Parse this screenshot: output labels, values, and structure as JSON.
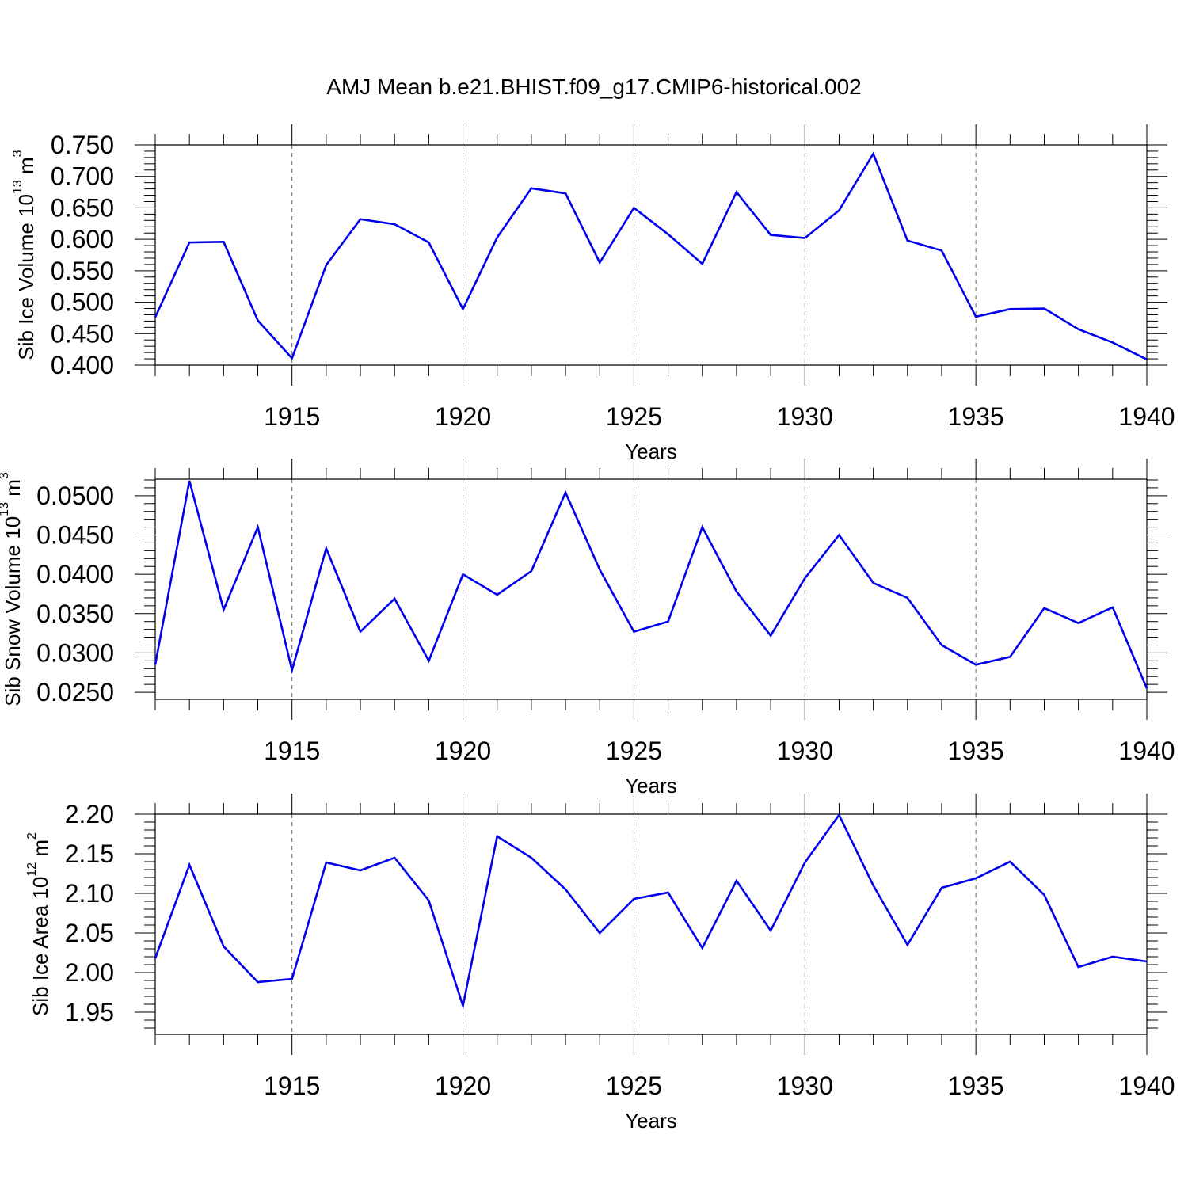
{
  "title": "AMJ Mean b.e21.BHIST.f09_g17.CMIP6-historical.002",
  "chart_data": [
    {
      "type": "line",
      "ylabel": {
        "prefix": "Sib Ice Volume 10",
        "exp": "13",
        "unit": " m",
        "unit_exp": "3"
      },
      "xlabel": "Years",
      "xlim": [
        1911,
        1940
      ],
      "ylim": [
        0.4,
        0.75
      ],
      "xticks": [
        "1915",
        "1920",
        "1925",
        "1930",
        "1935",
        "1940"
      ],
      "yticks": [
        "0.400",
        "0.450",
        "0.500",
        "0.550",
        "0.600",
        "0.650",
        "0.700",
        "0.750"
      ],
      "color": "#0000ee",
      "grid": "dashed vertical at labeled years",
      "x": [
        1911,
        1912,
        1913,
        1914,
        1915,
        1916,
        1917,
        1918,
        1919,
        1920,
        1921,
        1922,
        1923,
        1924,
        1925,
        1926,
        1927,
        1928,
        1929,
        1930,
        1931,
        1932,
        1933,
        1934,
        1935,
        1936,
        1937,
        1938,
        1939,
        1940
      ],
      "values": [
        0.476,
        0.595,
        0.596,
        0.471,
        0.411,
        0.559,
        0.632,
        0.624,
        0.595,
        0.489,
        0.603,
        0.681,
        0.673,
        0.563,
        0.65,
        0.608,
        0.561,
        0.675,
        0.607,
        0.602,
        0.646,
        0.736,
        0.598,
        0.582,
        0.477,
        0.489,
        0.49,
        0.457,
        0.436,
        0.409
      ]
    },
    {
      "type": "line",
      "ylabel": {
        "prefix": "Sib Snow Volume 10",
        "exp": "13",
        "unit": " m",
        "unit_exp": "3"
      },
      "xlabel": "Years",
      "xlim": [
        1911,
        1940
      ],
      "ylim": [
        0.0241,
        0.0521
      ],
      "xticks": [
        "1915",
        "1920",
        "1925",
        "1930",
        "1935",
        "1940"
      ],
      "yticks": [
        "0.0250",
        "0.0300",
        "0.0350",
        "0.0400",
        "0.0450",
        "0.0500"
      ],
      "color": "#0000ee",
      "grid": "dashed vertical at labeled years",
      "x": [
        1911,
        1912,
        1913,
        1914,
        1915,
        1916,
        1917,
        1918,
        1919,
        1920,
        1921,
        1922,
        1923,
        1924,
        1925,
        1926,
        1927,
        1928,
        1929,
        1930,
        1931,
        1932,
        1933,
        1934,
        1935,
        1936,
        1937,
        1938,
        1939,
        1940
      ],
      "values": [
        0.0285,
        0.0519,
        0.0355,
        0.046,
        0.0278,
        0.0433,
        0.0327,
        0.0369,
        0.029,
        0.04,
        0.0374,
        0.0404,
        0.0504,
        0.0406,
        0.0327,
        0.034,
        0.046,
        0.0378,
        0.0322,
        0.0395,
        0.045,
        0.0389,
        0.037,
        0.031,
        0.0285,
        0.0295,
        0.0357,
        0.0338,
        0.0358,
        0.0255
      ]
    },
    {
      "type": "line",
      "ylabel": {
        "prefix": "Sib Ice Area 10",
        "exp": "12",
        "unit": " m",
        "unit_exp": "2"
      },
      "xlabel": "Years",
      "xlim": [
        1911,
        1940
      ],
      "ylim": [
        1.922,
        2.2
      ],
      "xticks": [
        "1915",
        "1920",
        "1925",
        "1930",
        "1935",
        "1940"
      ],
      "yticks": [
        "1.95",
        "2.00",
        "2.05",
        "2.10",
        "2.15",
        "2.20"
      ],
      "color": "#0000ee",
      "grid": "dashed vertical at labeled years",
      "x": [
        1911,
        1912,
        1913,
        1914,
        1915,
        1916,
        1917,
        1918,
        1919,
        1920,
        1921,
        1922,
        1923,
        1924,
        1925,
        1926,
        1927,
        1928,
        1929,
        1930,
        1931,
        1932,
        1933,
        1934,
        1935,
        1936,
        1937,
        1938,
        1939,
        1940
      ],
      "values": [
        2.018,
        2.136,
        2.033,
        1.988,
        1.992,
        2.139,
        2.129,
        2.145,
        2.091,
        1.958,
        2.172,
        2.145,
        2.105,
        2.05,
        2.093,
        2.101,
        2.031,
        2.116,
        2.053,
        2.139,
        2.199,
        2.11,
        2.035,
        2.107,
        2.119,
        2.14,
        2.098,
        2.007,
        2.02,
        2.014
      ]
    }
  ]
}
